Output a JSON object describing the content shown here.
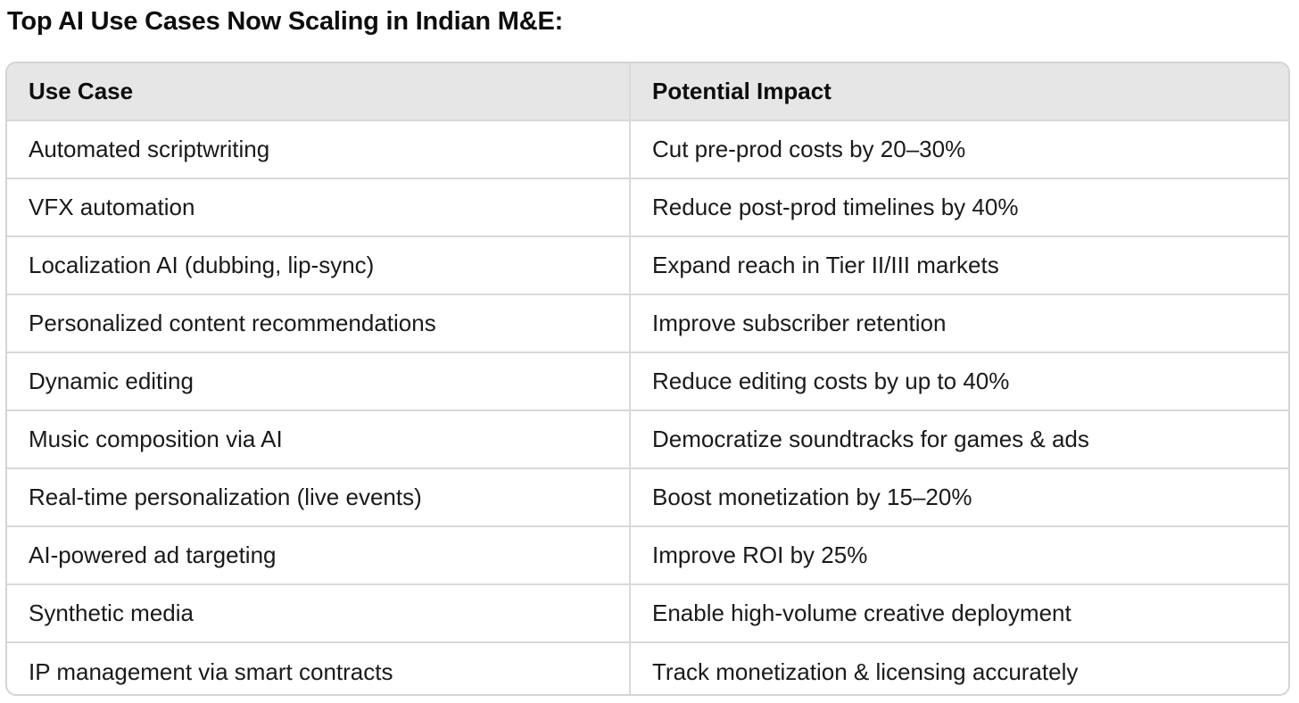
{
  "title": "Top AI Use Cases Now Scaling in Indian M&E:",
  "table": {
    "headers": [
      "Use Case",
      "Potential Impact"
    ],
    "rows": [
      [
        "Automated scriptwriting",
        "Cut pre-prod costs by 20–30%"
      ],
      [
        "VFX automation",
        "Reduce post-prod timelines by 40%"
      ],
      [
        "Localization AI (dubbing, lip-sync)",
        "Expand reach in Tier II/III markets"
      ],
      [
        "Personalized content recommendations",
        "Improve subscriber retention"
      ],
      [
        "Dynamic editing",
        "Reduce editing costs by up to 40%"
      ],
      [
        "Music composition via AI",
        "Democratize soundtracks for games & ads"
      ],
      [
        "Real-time personalization (live events)",
        "Boost monetization by 15–20%"
      ],
      [
        "AI-powered ad targeting",
        "Improve ROI by 25%"
      ],
      [
        "Synthetic media",
        "Enable high-volume creative deployment"
      ],
      [
        "IP management via smart contracts",
        "Track monetization & licensing accurately"
      ]
    ]
  }
}
